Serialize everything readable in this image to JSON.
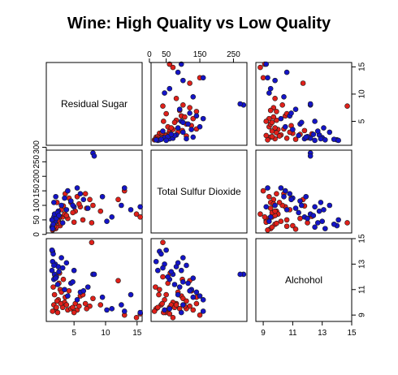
{
  "chart_data": {
    "type": "scatter",
    "subtype": "scatterplot-matrix",
    "title": "Wine: High Quality vs Low Quality",
    "variables": [
      "Residual Sugar",
      "Total Sulfur Dioxide",
      "Alchohol"
    ],
    "ranges": {
      "Residual Sugar": [
        0.6,
        15.8
      ],
      "Total Sulfur Dioxide": [
        5,
        290
      ],
      "Alchohol": [
        8.5,
        15
      ]
    },
    "ticks": {
      "Residual Sugar": [
        5,
        10,
        15
      ],
      "Total Sulfur Dioxide": [
        0,
        50,
        100,
        150,
        200,
        250,
        300
      ],
      "Alchohol": [
        9,
        11,
        13,
        15
      ]
    },
    "tick_labels": {
      "Residual Sugar": [
        "5",
        "10",
        "15"
      ],
      "Total Sulfur Dioxide": [
        "0",
        "50",
        "100",
        "150",
        "200",
        "250",
        "300"
      ],
      "Total Sulfur Dioxide_top": [
        "0",
        "50",
        "150",
        "250"
      ],
      "Alchohol": [
        "9",
        "11",
        "13",
        "15"
      ]
    },
    "grid": false,
    "legend": "none",
    "series": [
      {
        "color": "#e0201a",
        "points": [
          [
            2.1,
            20,
            9.5
          ],
          [
            1.8,
            35,
            9.8
          ],
          [
            2.5,
            45,
            10.2
          ],
          [
            3.2,
            60,
            9.6
          ],
          [
            4.0,
            55,
            9.4
          ],
          [
            5.2,
            80,
            9.9
          ],
          [
            6.0,
            95,
            10.5
          ],
          [
            7.5,
            120,
            9.7
          ],
          [
            2.8,
            30,
            11.0
          ],
          [
            3.5,
            70,
            10.0
          ],
          [
            1.6,
            15,
            9.3
          ],
          [
            2.2,
            25,
            9.6
          ],
          [
            4.5,
            110,
            9.5
          ],
          [
            6.8,
            140,
            9.9
          ],
          [
            8.0,
            100,
            10.3
          ],
          [
            2.0,
            40,
            12.0
          ],
          [
            2.6,
            55,
            11.5
          ],
          [
            3.0,
            85,
            10.8
          ],
          [
            3.8,
            65,
            9.8
          ],
          [
            5.5,
            130,
            9.4
          ],
          [
            1.9,
            28,
            10.6
          ],
          [
            2.4,
            48,
            9.2
          ],
          [
            4.8,
            75,
            9.6
          ],
          [
            7.0,
            90,
            9.5
          ],
          [
            2.9,
            38,
            9.9
          ],
          [
            13.0,
            150,
            9.0
          ],
          [
            14.9,
            70,
            8.8
          ],
          [
            12.0,
            120,
            11.7
          ],
          [
            7.8,
            40,
            14.7
          ],
          [
            15.5,
            60,
            9.1
          ],
          [
            2.3,
            110,
            10.1
          ],
          [
            3.6,
            140,
            10.4
          ],
          [
            5.8,
            105,
            9.7
          ],
          [
            6.4,
            50,
            10.6
          ],
          [
            9.2,
            80,
            9.8
          ],
          [
            1.7,
            18,
            11.2
          ],
          [
            2.7,
            62,
            12.3
          ],
          [
            3.3,
            98,
            11.8
          ],
          [
            4.2,
            125,
            10.9
          ],
          [
            5.0,
            42,
            9.2
          ]
        ]
      },
      {
        "color": "#1414c8",
        "points": [
          [
            1.5,
            25,
            12.5
          ],
          [
            2.0,
            45,
            13.0
          ],
          [
            1.8,
            60,
            11.8
          ],
          [
            2.5,
            80,
            12.8
          ],
          [
            3.0,
            100,
            13.5
          ],
          [
            1.6,
            30,
            14.0
          ],
          [
            1.9,
            70,
            12.2
          ],
          [
            4.5,
            115,
            11.5
          ],
          [
            6.0,
            140,
            10.8
          ],
          [
            7.2,
            90,
            11.2
          ],
          [
            1.7,
            35,
            13.8
          ],
          [
            2.2,
            55,
            12.0
          ],
          [
            3.5,
            125,
            11.0
          ],
          [
            5.0,
            95,
            12.5
          ],
          [
            8.0,
            280,
            12.2
          ],
          [
            8.2,
            270,
            12.2
          ],
          [
            13.0,
            160,
            9.3
          ],
          [
            14.0,
            85,
            10.6
          ],
          [
            15.5,
            95,
            9.2
          ],
          [
            11.0,
            60,
            9.5
          ],
          [
            1.6,
            20,
            13.2
          ],
          [
            2.4,
            75,
            11.4
          ],
          [
            3.2,
            40,
            12.7
          ],
          [
            4.0,
            150,
            10.5
          ],
          [
            10.2,
            45,
            9.4
          ],
          [
            1.8,
            110,
            12.9
          ],
          [
            2.1,
            130,
            11.9
          ],
          [
            3.8,
            85,
            13.1
          ],
          [
            5.5,
            160,
            10.2
          ],
          [
            9.5,
            130,
            10.4
          ],
          [
            1.5,
            50,
            14.1
          ],
          [
            2.6,
            65,
            12.4
          ],
          [
            4.8,
            100,
            11.6
          ],
          [
            6.5,
            120,
            10.9
          ],
          [
            12.5,
            100,
            9.8
          ]
        ]
      }
    ]
  }
}
